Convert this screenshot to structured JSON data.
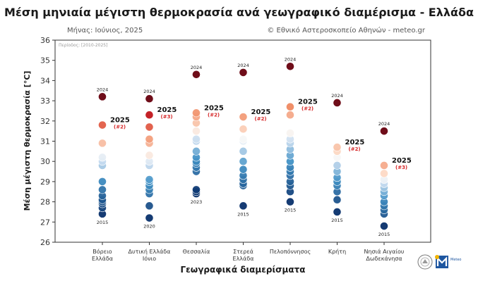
{
  "header": {
    "title": "Μέση μηνιαία μέγιστη θερμοκρασία ανά γεωγραφικό διαμέρισμα - Ελλάδα",
    "subtitle_left": "Μήνας: Ιούνιος, 2025",
    "subtitle_right": "© Εθνικό Αστεροσκοπείο Αθηνών - meteo.gr",
    "period": "Περίοδος: [2010-2025]"
  },
  "logos": {
    "left": "seal-icon",
    "right": "meteo-logo-icon",
    "right_text": "Meteo"
  },
  "chart_data": {
    "type": "scatter",
    "title": "Μέση μηνιαία μέγιστη θερμοκρασία ανά γεωγραφικό διαμέρισμα - Ελλάδα",
    "xlabel": "Γεωγραφικά διαμερίσματα",
    "ylabel": "Μέση μέγιστη θερμοκρασία [°C]",
    "ylim": [
      26,
      36
    ],
    "yticks": [
      26,
      27,
      28,
      29,
      30,
      31,
      32,
      33,
      34,
      35,
      36
    ],
    "grid": false,
    "colors": {
      "cold": "#08306b",
      "warm": "#67000d"
    },
    "categories": [
      {
        "name": [
          "Βόρειο",
          "Ελλάδα"
        ],
        "values": [
          27.4,
          27.7,
          27.9,
          28.0,
          28.1,
          28.3,
          28.6,
          29.0,
          29.8,
          30.0,
          30.2,
          30.9,
          31.8,
          33.2
        ],
        "label_2025": "2025",
        "rank_2025": "(#2)",
        "value_2025": 31.8,
        "max_label": "2024",
        "max_value": 33.2,
        "min_label": "2015",
        "min_value": 27.4
      },
      {
        "name": [
          "Δυτική Ελλάδα",
          "Ιόνιο"
        ],
        "values": [
          27.2,
          27.8,
          28.4,
          28.6,
          28.8,
          29.0,
          29.1,
          29.8,
          30.0,
          30.3,
          30.9,
          31.1,
          31.7,
          32.3,
          33.1
        ],
        "label_2025": "2025",
        "rank_2025": "(#3)",
        "value_2025": 32.3,
        "max_label": "2024",
        "max_value": 33.1,
        "min_label": "2020",
        "min_value": 27.2
      },
      {
        "name": [
          "Θεσσαλία"
        ],
        "values": [
          28.4,
          28.5,
          28.6,
          29.5,
          29.7,
          29.9,
          30.0,
          30.2,
          30.5,
          31.0,
          31.1,
          31.5,
          31.9,
          32.2,
          32.4,
          34.3
        ],
        "label_2025": "2025",
        "rank_2025": "(#2)",
        "value_2025": 32.4,
        "max_label": "2024",
        "max_value": 34.3,
        "min_label": "2023",
        "min_value": 28.4
      },
      {
        "name": [
          "Στερεά",
          "Ελλάδα"
        ],
        "values": [
          27.8,
          28.8,
          28.9,
          29.1,
          29.3,
          29.6,
          30.0,
          30.5,
          31.0,
          31.1,
          31.6,
          32.2,
          34.4
        ],
        "label_2025": "2025",
        "rank_2025": "(#2)",
        "value_2025": 32.2,
        "max_label": "2024",
        "max_value": 34.4,
        "min_label": "2015",
        "min_value": 27.8
      },
      {
        "name": [
          "Πελοπόννησος"
        ],
        "values": [
          28.0,
          28.5,
          28.8,
          29.0,
          29.3,
          29.5,
          29.7,
          30.0,
          30.3,
          30.6,
          30.9,
          31.1,
          31.4,
          32.3,
          32.7,
          34.7
        ],
        "label_2025": "2025",
        "rank_2025": "(#2)",
        "value_2025": 32.7,
        "max_label": "2024",
        "max_value": 34.7,
        "min_label": "2015",
        "min_value": 28.0
      },
      {
        "name": [
          "Κρήτη"
        ],
        "values": [
          27.5,
          28.1,
          28.5,
          28.8,
          29.0,
          29.2,
          29.5,
          29.8,
          30.2,
          30.5,
          30.7,
          32.9
        ],
        "label_2025": "2025",
        "rank_2025": "(#2)",
        "value_2025": 30.7,
        "max_label": "2024",
        "max_value": 32.9,
        "min_label": "2015",
        "min_value": 27.5
      },
      {
        "name": [
          "Νησιά Αιγαίου",
          "Δωδεκάνησα"
        ],
        "values": [
          26.8,
          27.4,
          27.6,
          27.8,
          28.0,
          28.3,
          28.5,
          28.7,
          28.9,
          29.1,
          29.4,
          29.8,
          31.5
        ],
        "label_2025": "2025",
        "rank_2025": "(#3)",
        "value_2025": 29.8,
        "max_label": "2024",
        "max_value": 31.5,
        "min_label": "2015",
        "min_value": 26.8
      }
    ]
  }
}
